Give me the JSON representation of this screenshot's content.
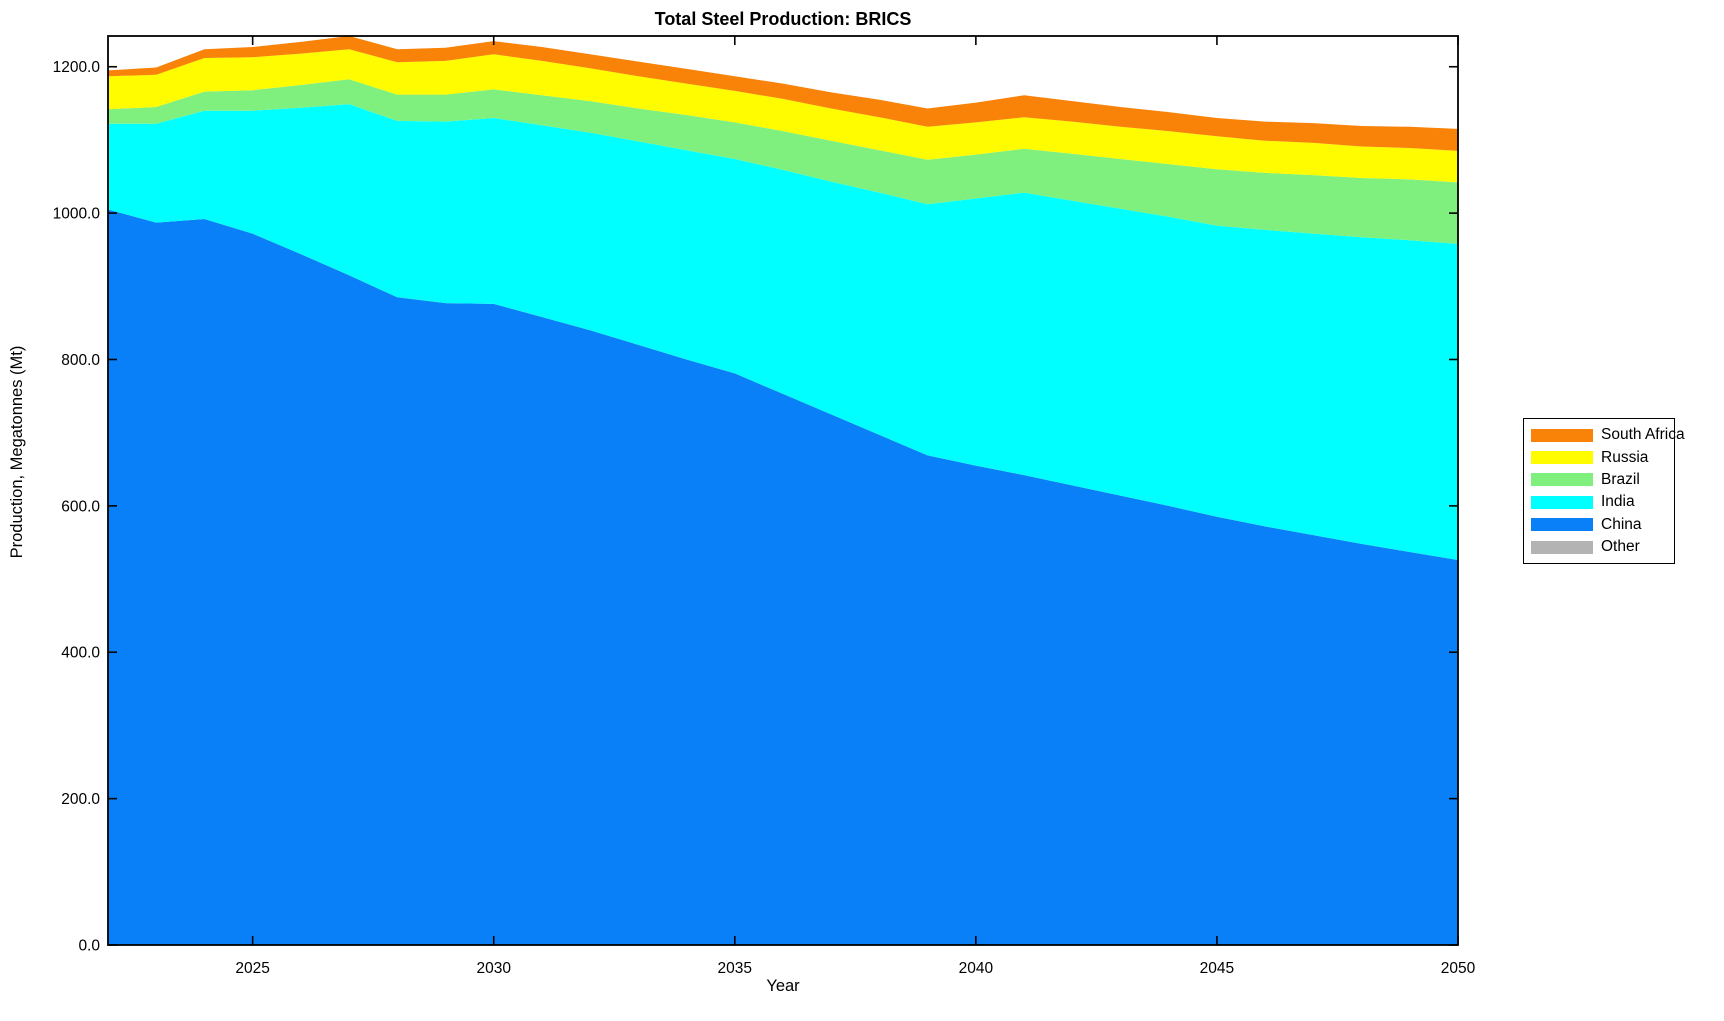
{
  "chart_data": {
    "type": "area",
    "stacked": true,
    "title": "Total Steel Production: BRICS",
    "xlabel": "Year",
    "ylabel": "Production, Megatonnes (Mt)",
    "grid": false,
    "legend_position": "outside-right",
    "background": "#ffffff",
    "frame_color": "#000000",
    "xlim": [
      2022,
      2050
    ],
    "ylim": [
      0,
      1242
    ],
    "x_ticks": [
      2025,
      2030,
      2035,
      2040,
      2045,
      2050
    ],
    "x_tick_labels": [
      "2025",
      "2030",
      "2035",
      "2040",
      "2045",
      "2050"
    ],
    "y_ticks": [
      0,
      200,
      400,
      600,
      800,
      1000,
      1200
    ],
    "y_tick_labels": [
      "0.0",
      "200.0",
      "400.0",
      "600.0",
      "800.0",
      "1000.0",
      "1200.0"
    ],
    "x": [
      2022,
      2023,
      2024,
      2025,
      2026,
      2027,
      2028,
      2029,
      2030,
      2031,
      2032,
      2033,
      2034,
      2035,
      2036,
      2037,
      2038,
      2039,
      2040,
      2041,
      2042,
      2043,
      2044,
      2045,
      2046,
      2047,
      2048,
      2049,
      2050
    ],
    "series": [
      {
        "name": "China",
        "color": "#0a80f8",
        "values": [
          1005,
          987,
          992,
          972,
          944,
          915,
          885,
          877,
          876,
          858,
          840,
          820,
          800,
          781,
          753,
          725,
          697,
          669,
          655,
          642,
          628,
          614,
          600,
          585,
          572,
          560,
          548,
          537,
          526
        ]
      },
      {
        "name": "India",
        "color": "#00ffff",
        "values": [
          117,
          135,
          148,
          168,
          200,
          234,
          241,
          248,
          254,
          262,
          270,
          278,
          286,
          293,
          306,
          318,
          331,
          343,
          365,
          386,
          389,
          392,
          395,
          398,
          405,
          412,
          419,
          426,
          432
        ]
      },
      {
        "name": "Brazil",
        "color": "#7ff07d",
        "values": [
          20,
          23,
          26,
          28,
          31,
          34,
          36,
          37,
          39,
          41,
          43,
          45,
          48,
          50,
          53,
          56,
          58,
          61,
          60,
          60,
          64,
          68,
          72,
          77,
          78,
          80,
          81,
          83,
          84
        ]
      },
      {
        "name": "Russia",
        "color": "#fffc00",
        "values": [
          45,
          44,
          46,
          45,
          43,
          41,
          44,
          46,
          48,
          47,
          45,
          44,
          43,
          43,
          44,
          44,
          45,
          45,
          44,
          43,
          44,
          44,
          45,
          45,
          44,
          44,
          43,
          43,
          43
        ]
      },
      {
        "name": "South Africa",
        "color": "#f98208",
        "values": [
          8,
          10,
          12,
          14,
          16,
          18,
          18,
          18,
          18,
          19,
          19,
          20,
          20,
          20,
          21,
          22,
          24,
          25,
          27,
          30,
          28,
          27,
          26,
          25,
          26,
          27,
          28,
          29,
          30
        ]
      },
      {
        "name": "Other",
        "color": "#b3b3b3",
        "values": [
          0,
          0,
          0,
          0,
          0,
          0,
          0,
          0,
          0,
          0,
          0,
          0,
          0,
          0,
          0,
          0,
          0,
          0,
          0,
          0,
          0,
          0,
          0,
          0,
          0,
          0,
          0,
          0,
          0
        ]
      }
    ],
    "legend_order": [
      "South Africa",
      "Russia",
      "Brazil",
      "India",
      "China",
      "Other"
    ]
  }
}
